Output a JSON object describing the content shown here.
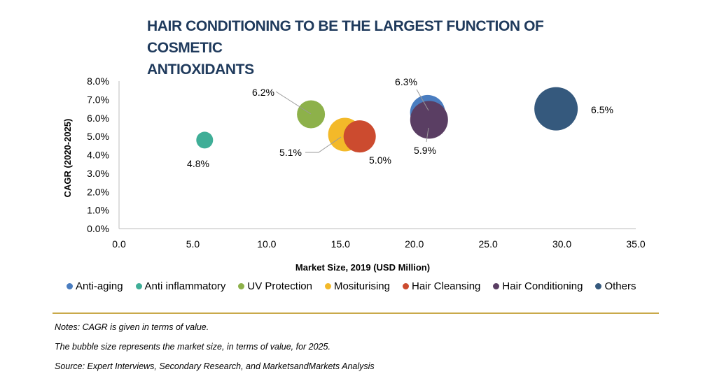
{
  "title_lines": [
    "HAIR CONDITIONING TO BE THE LARGEST FUNCTION OF COSMETIC",
    "ANTIOXIDANTS"
  ],
  "chart_data": {
    "type": "scatter",
    "subtype": "bubble",
    "title": "HAIR CONDITIONING TO BE THE LARGEST FUNCTION OF COSMETIC ANTIOXIDANTS",
    "xlabel": "Market Size, 2019 (USD Million)",
    "ylabel": "CAGR (2020-2025)",
    "xlim": [
      0,
      35
    ],
    "ylim": [
      0,
      8
    ],
    "x_ticks": [
      "0.0",
      "5.0",
      "10.0",
      "15.0",
      "20.0",
      "25.0",
      "30.0",
      "35.0"
    ],
    "y_ticks": [
      "0.0%",
      "1.0%",
      "2.0%",
      "3.0%",
      "4.0%",
      "5.0%",
      "6.0%",
      "7.0%",
      "8.0%"
    ],
    "grid": false,
    "legend_position": "bottom",
    "series": [
      {
        "name": "Anti-aging",
        "color": "#4a7dc0",
        "x": 20.9,
        "y": 6.3,
        "size": 25,
        "label": "6.3%"
      },
      {
        "name": "Anti inflammatory",
        "color": "#3fae97",
        "x": 5.8,
        "y": 4.8,
        "size": 12,
        "label": "4.8%"
      },
      {
        "name": "UV Protection",
        "color": "#8db14a",
        "x": 13.0,
        "y": 6.2,
        "size": 20,
        "label": "6.2%"
      },
      {
        "name": "Mositurising",
        "color": "#f3b929",
        "x": 15.3,
        "y": 5.1,
        "size": 24,
        "label": "5.1%"
      },
      {
        "name": "Hair Cleansing",
        "color": "#cc4b2f",
        "x": 16.3,
        "y": 5.0,
        "size": 23,
        "label": "5.0%"
      },
      {
        "name": "Hair Conditioning",
        "color": "#5a3e63",
        "x": 21.0,
        "y": 5.9,
        "size": 27,
        "label": "5.9%"
      },
      {
        "name": "Others",
        "color": "#35597d",
        "x": 29.6,
        "y": 6.5,
        "size": 31,
        "label": "6.5%"
      }
    ]
  },
  "notes": [
    "Notes: CAGR is given in terms of value.",
    "The bubble size represents the market size, in terms of value, for 2025.",
    "Source: Expert Interviews, Secondary Research, and MarketsandMarkets Analysis"
  ]
}
